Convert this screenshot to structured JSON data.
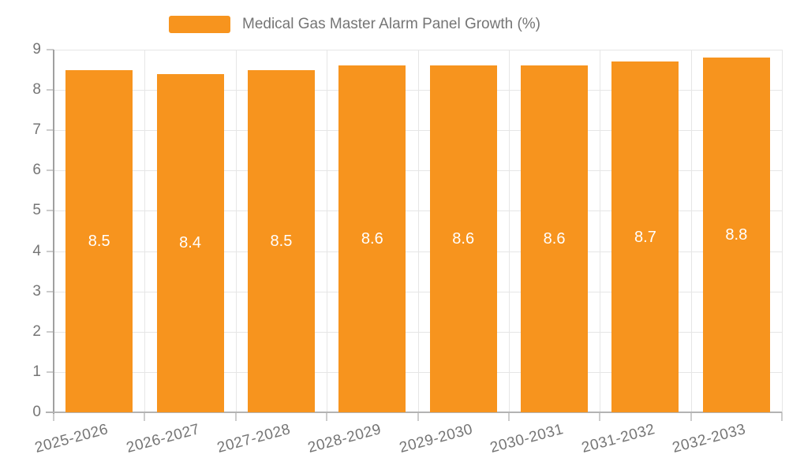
{
  "chart_data": {
    "type": "bar",
    "title": "Medical Gas Master Alarm Panel Growth (%)",
    "legend_position": "top",
    "legend": [
      "Medical Gas Master Alarm Panel Growth (%)"
    ],
    "categories": [
      "2025-2026",
      "2026-2027",
      "2027-2028",
      "2028-2029",
      "2029-2030",
      "2030-2031",
      "2031-2032",
      "2032-2033"
    ],
    "series": [
      {
        "name": "Medical Gas Master Alarm Panel Growth (%)",
        "values": [
          8.5,
          8.4,
          8.5,
          8.6,
          8.6,
          8.6,
          8.7,
          8.8
        ],
        "data_labels": [
          "8.5",
          "8.4",
          "8.5",
          "8.6",
          "8.6",
          "8.6",
          "8.7",
          "8.8"
        ]
      }
    ],
    "xlabel": "",
    "ylabel": "",
    "ylim": [
      0,
      9
    ],
    "y_ticks": [
      "0",
      "1",
      "2",
      "3",
      "4",
      "5",
      "6",
      "7",
      "8",
      "9"
    ],
    "grid": true,
    "colors": {
      "bar": "#f7941e",
      "value_label": "#ffffff",
      "axis_text": "#757575",
      "gridline": "#e6e6e6",
      "axis_line_y": "#a0a0a0",
      "axis_line_x": "#b3b3b3",
      "tick": "#cccccc",
      "background": "#ffffff"
    }
  }
}
